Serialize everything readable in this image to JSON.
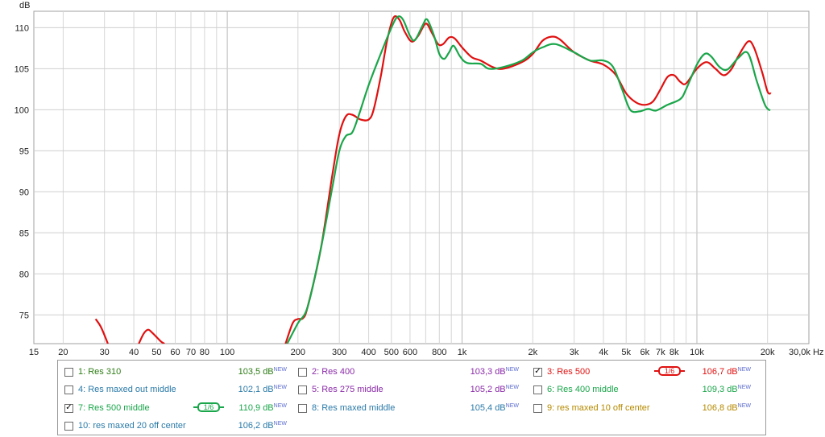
{
  "chart_data": {
    "type": "line",
    "yunit": "dB",
    "xunit": "Hz",
    "xscale": "log",
    "xlim": [
      15,
      30000
    ],
    "ylim": [
      71.5,
      112
    ],
    "y_ticks": [
      "75",
      "80",
      "85",
      "90",
      "95",
      "100",
      "105",
      "110"
    ],
    "y_tick_values": [
      75,
      80,
      85,
      90,
      95,
      100,
      105,
      110
    ],
    "x_ticks": [
      {
        "v": 15,
        "t": "15"
      },
      {
        "v": 20,
        "t": "20"
      },
      {
        "v": 30,
        "t": "30"
      },
      {
        "v": 40,
        "t": "40"
      },
      {
        "v": 50,
        "t": "50"
      },
      {
        "v": 60,
        "t": "60"
      },
      {
        "v": 70,
        "t": "70"
      },
      {
        "v": 80,
        "t": "80"
      },
      {
        "v": 100,
        "t": "100"
      },
      {
        "v": 200,
        "t": "200"
      },
      {
        "v": 300,
        "t": "300"
      },
      {
        "v": 400,
        "t": "400"
      },
      {
        "v": 500,
        "t": "500"
      },
      {
        "v": 600,
        "t": "600"
      },
      {
        "v": 800,
        "t": "800"
      },
      {
        "v": 1000,
        "t": "1k"
      },
      {
        "v": 2000,
        "t": "2k"
      },
      {
        "v": 3000,
        "t": "3k"
      },
      {
        "v": 4000,
        "t": "4k"
      },
      {
        "v": 5000,
        "t": "5k"
      },
      {
        "v": 6000,
        "t": "6k"
      },
      {
        "v": 7000,
        "t": "7k"
      },
      {
        "v": 8000,
        "t": "8k"
      },
      {
        "v": 10000,
        "t": "10k"
      },
      {
        "v": 20000,
        "t": "20k"
      },
      {
        "v": 30000,
        "t": "30,0k Hz"
      }
    ],
    "grid": true,
    "series": [
      {
        "name": "3: Res 500",
        "color": "#e01010",
        "points": [
          [
            27.5,
            74.5
          ],
          [
            29,
            73.5
          ],
          [
            31,
            71.5
          ],
          [
            42,
            71.5
          ],
          [
            44,
            72.7
          ],
          [
            46,
            73.2
          ],
          [
            48,
            72.8
          ],
          [
            52,
            71.8
          ],
          [
            54,
            71.5
          ],
          [
            177,
            71.5
          ],
          [
            190,
            74.0
          ],
          [
            200,
            74.5
          ],
          [
            210,
            74.6
          ],
          [
            220,
            76.0
          ],
          [
            250,
            83.0
          ],
          [
            280,
            92.0
          ],
          [
            300,
            97.0
          ],
          [
            320,
            99.2
          ],
          [
            340,
            99.4
          ],
          [
            370,
            98.8
          ],
          [
            400,
            98.8
          ],
          [
            420,
            100.0
          ],
          [
            450,
            104.0
          ],
          [
            480,
            108.5
          ],
          [
            510,
            111.2
          ],
          [
            540,
            111.0
          ],
          [
            570,
            109.5
          ],
          [
            610,
            108.3
          ],
          [
            650,
            109.0
          ],
          [
            700,
            110.5
          ],
          [
            740,
            109.5
          ],
          [
            790,
            108.0
          ],
          [
            830,
            108.0
          ],
          [
            880,
            108.8
          ],
          [
            930,
            108.7
          ],
          [
            1000,
            107.6
          ],
          [
            1100,
            106.4
          ],
          [
            1200,
            106.0
          ],
          [
            1350,
            105.2
          ],
          [
            1500,
            105.0
          ],
          [
            1800,
            105.8
          ],
          [
            2000,
            106.8
          ],
          [
            2200,
            108.4
          ],
          [
            2400,
            108.9
          ],
          [
            2600,
            108.6
          ],
          [
            3000,
            107.0
          ],
          [
            3500,
            106.0
          ],
          [
            4000,
            105.5
          ],
          [
            4500,
            104.3
          ],
          [
            5000,
            102.0
          ],
          [
            5500,
            100.9
          ],
          [
            6000,
            100.6
          ],
          [
            6500,
            101.0
          ],
          [
            7000,
            102.5
          ],
          [
            7500,
            104.0
          ],
          [
            8000,
            104.2
          ],
          [
            8500,
            103.4
          ],
          [
            9000,
            103.2
          ],
          [
            10000,
            105.0
          ],
          [
            11000,
            105.8
          ],
          [
            12000,
            105.0
          ],
          [
            13000,
            104.2
          ],
          [
            14000,
            104.9
          ],
          [
            15000,
            106.5
          ],
          [
            16500,
            108.3
          ],
          [
            17500,
            107.6
          ],
          [
            19000,
            104.5
          ],
          [
            20000,
            102.2
          ],
          [
            20700,
            102.0
          ]
        ]
      },
      {
        "name": "7: Res 500 middle",
        "color": "#1aa64a",
        "points": [
          [
            180,
            71.5
          ],
          [
            200,
            74.0
          ],
          [
            220,
            76.0
          ],
          [
            250,
            83.0
          ],
          [
            280,
            90.5
          ],
          [
            300,
            95.0
          ],
          [
            320,
            96.8
          ],
          [
            340,
            97.2
          ],
          [
            360,
            99.0
          ],
          [
            400,
            103.0
          ],
          [
            450,
            106.8
          ],
          [
            500,
            110.0
          ],
          [
            530,
            111.3
          ],
          [
            560,
            111.0
          ],
          [
            600,
            109.0
          ],
          [
            630,
            108.5
          ],
          [
            680,
            110.3
          ],
          [
            710,
            111.0
          ],
          [
            760,
            109.0
          ],
          [
            800,
            106.8
          ],
          [
            840,
            106.2
          ],
          [
            880,
            107.0
          ],
          [
            920,
            107.8
          ],
          [
            980,
            106.5
          ],
          [
            1050,
            105.7
          ],
          [
            1200,
            105.6
          ],
          [
            1300,
            105.0
          ],
          [
            1500,
            105.2
          ],
          [
            1800,
            106.0
          ],
          [
            2000,
            107.0
          ],
          [
            2200,
            107.6
          ],
          [
            2500,
            108.0
          ],
          [
            3000,
            107.0
          ],
          [
            3500,
            106.0
          ],
          [
            4000,
            106.0
          ],
          [
            4400,
            105.2
          ],
          [
            4800,
            102.5
          ],
          [
            5200,
            100.0
          ],
          [
            5700,
            99.8
          ],
          [
            6200,
            100.1
          ],
          [
            6700,
            99.9
          ],
          [
            7500,
            100.6
          ],
          [
            8500,
            101.3
          ],
          [
            9000,
            102.5
          ],
          [
            10000,
            105.5
          ],
          [
            10800,
            106.8
          ],
          [
            11500,
            106.5
          ],
          [
            12500,
            105.2
          ],
          [
            13500,
            104.9
          ],
          [
            15000,
            106.3
          ],
          [
            16500,
            106.9
          ],
          [
            18000,
            103.5
          ],
          [
            19500,
            100.6
          ],
          [
            20500,
            99.9
          ]
        ]
      }
    ]
  },
  "legend": {
    "entries": [
      {
        "label": "1: Res 310",
        "value": "103,5 dB",
        "checked": false,
        "color": "#2e7d16",
        "smoothing": ""
      },
      {
        "label": "2: Res 400",
        "value": "103,3 dB",
        "checked": false,
        "color": "#8a2aa8",
        "smoothing": ""
      },
      {
        "label": "3: Res 500",
        "value": "106,7 dB",
        "checked": true,
        "color": "#e01010",
        "smoothing": "1/6"
      },
      {
        "label": "4: Res maxed out middle",
        "value": "102,1 dB",
        "checked": false,
        "color": "#2a7aa8",
        "smoothing": ""
      },
      {
        "label": "5: Res 275 middle",
        "value": "105,2 dB",
        "checked": false,
        "color": "#8a2aa8",
        "smoothing": ""
      },
      {
        "label": "6: Res 400 middle",
        "value": "109,3 dB",
        "checked": false,
        "color": "#1aa64a",
        "smoothing": ""
      },
      {
        "label": "7: Res 500 middle",
        "value": "110,9 dB",
        "checked": true,
        "color": "#1aa64a",
        "smoothing": "1/6"
      },
      {
        "label": "8: Res maxed middle",
        "value": "105,4 dB",
        "checked": false,
        "color": "#2a7aa8",
        "smoothing": ""
      },
      {
        "label": "9: res maxed 10 off center",
        "value": "106,8 dB",
        "checked": false,
        "color": "#b58a00",
        "smoothing": ""
      },
      {
        "label": "10: res maxed 20 off center",
        "value": "106,2 dB",
        "checked": false,
        "color": "#2a7aa8",
        "smoothing": ""
      }
    ],
    "new_badge": "NEW"
  }
}
